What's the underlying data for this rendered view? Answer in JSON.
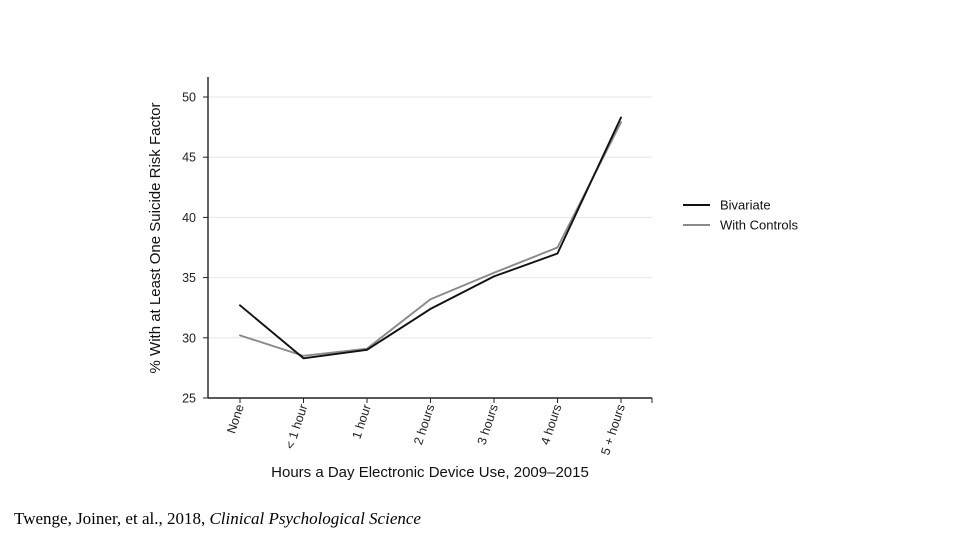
{
  "chart_data": {
    "type": "line",
    "xlabel": "Hours a Day Electronic Device Use, 2009–2015",
    "ylabel": "% With at Least One Suicide Risk Factor",
    "categories": [
      "None",
      "< 1 hour",
      "1 hour",
      "2 hours",
      "3 hours",
      "4 hours",
      "5 + hours"
    ],
    "ylim": [
      25,
      50
    ],
    "yticks": [
      25,
      30,
      35,
      40,
      45,
      50
    ],
    "grid": "horizontal",
    "legend_position": "right",
    "series": [
      {
        "name": "Bivariate",
        "color": "#111111",
        "values": [
          32.7,
          28.3,
          29.0,
          32.4,
          35.1,
          37.0,
          48.3
        ]
      },
      {
        "name": "With Controls",
        "color": "#8a8a8a",
        "values": [
          30.2,
          28.5,
          29.1,
          33.2,
          35.4,
          37.5,
          47.9
        ]
      }
    ]
  },
  "citation": {
    "authors": "Twenge, Joiner, et al., 2018,",
    "journal": "Clinical Psychological Science"
  }
}
